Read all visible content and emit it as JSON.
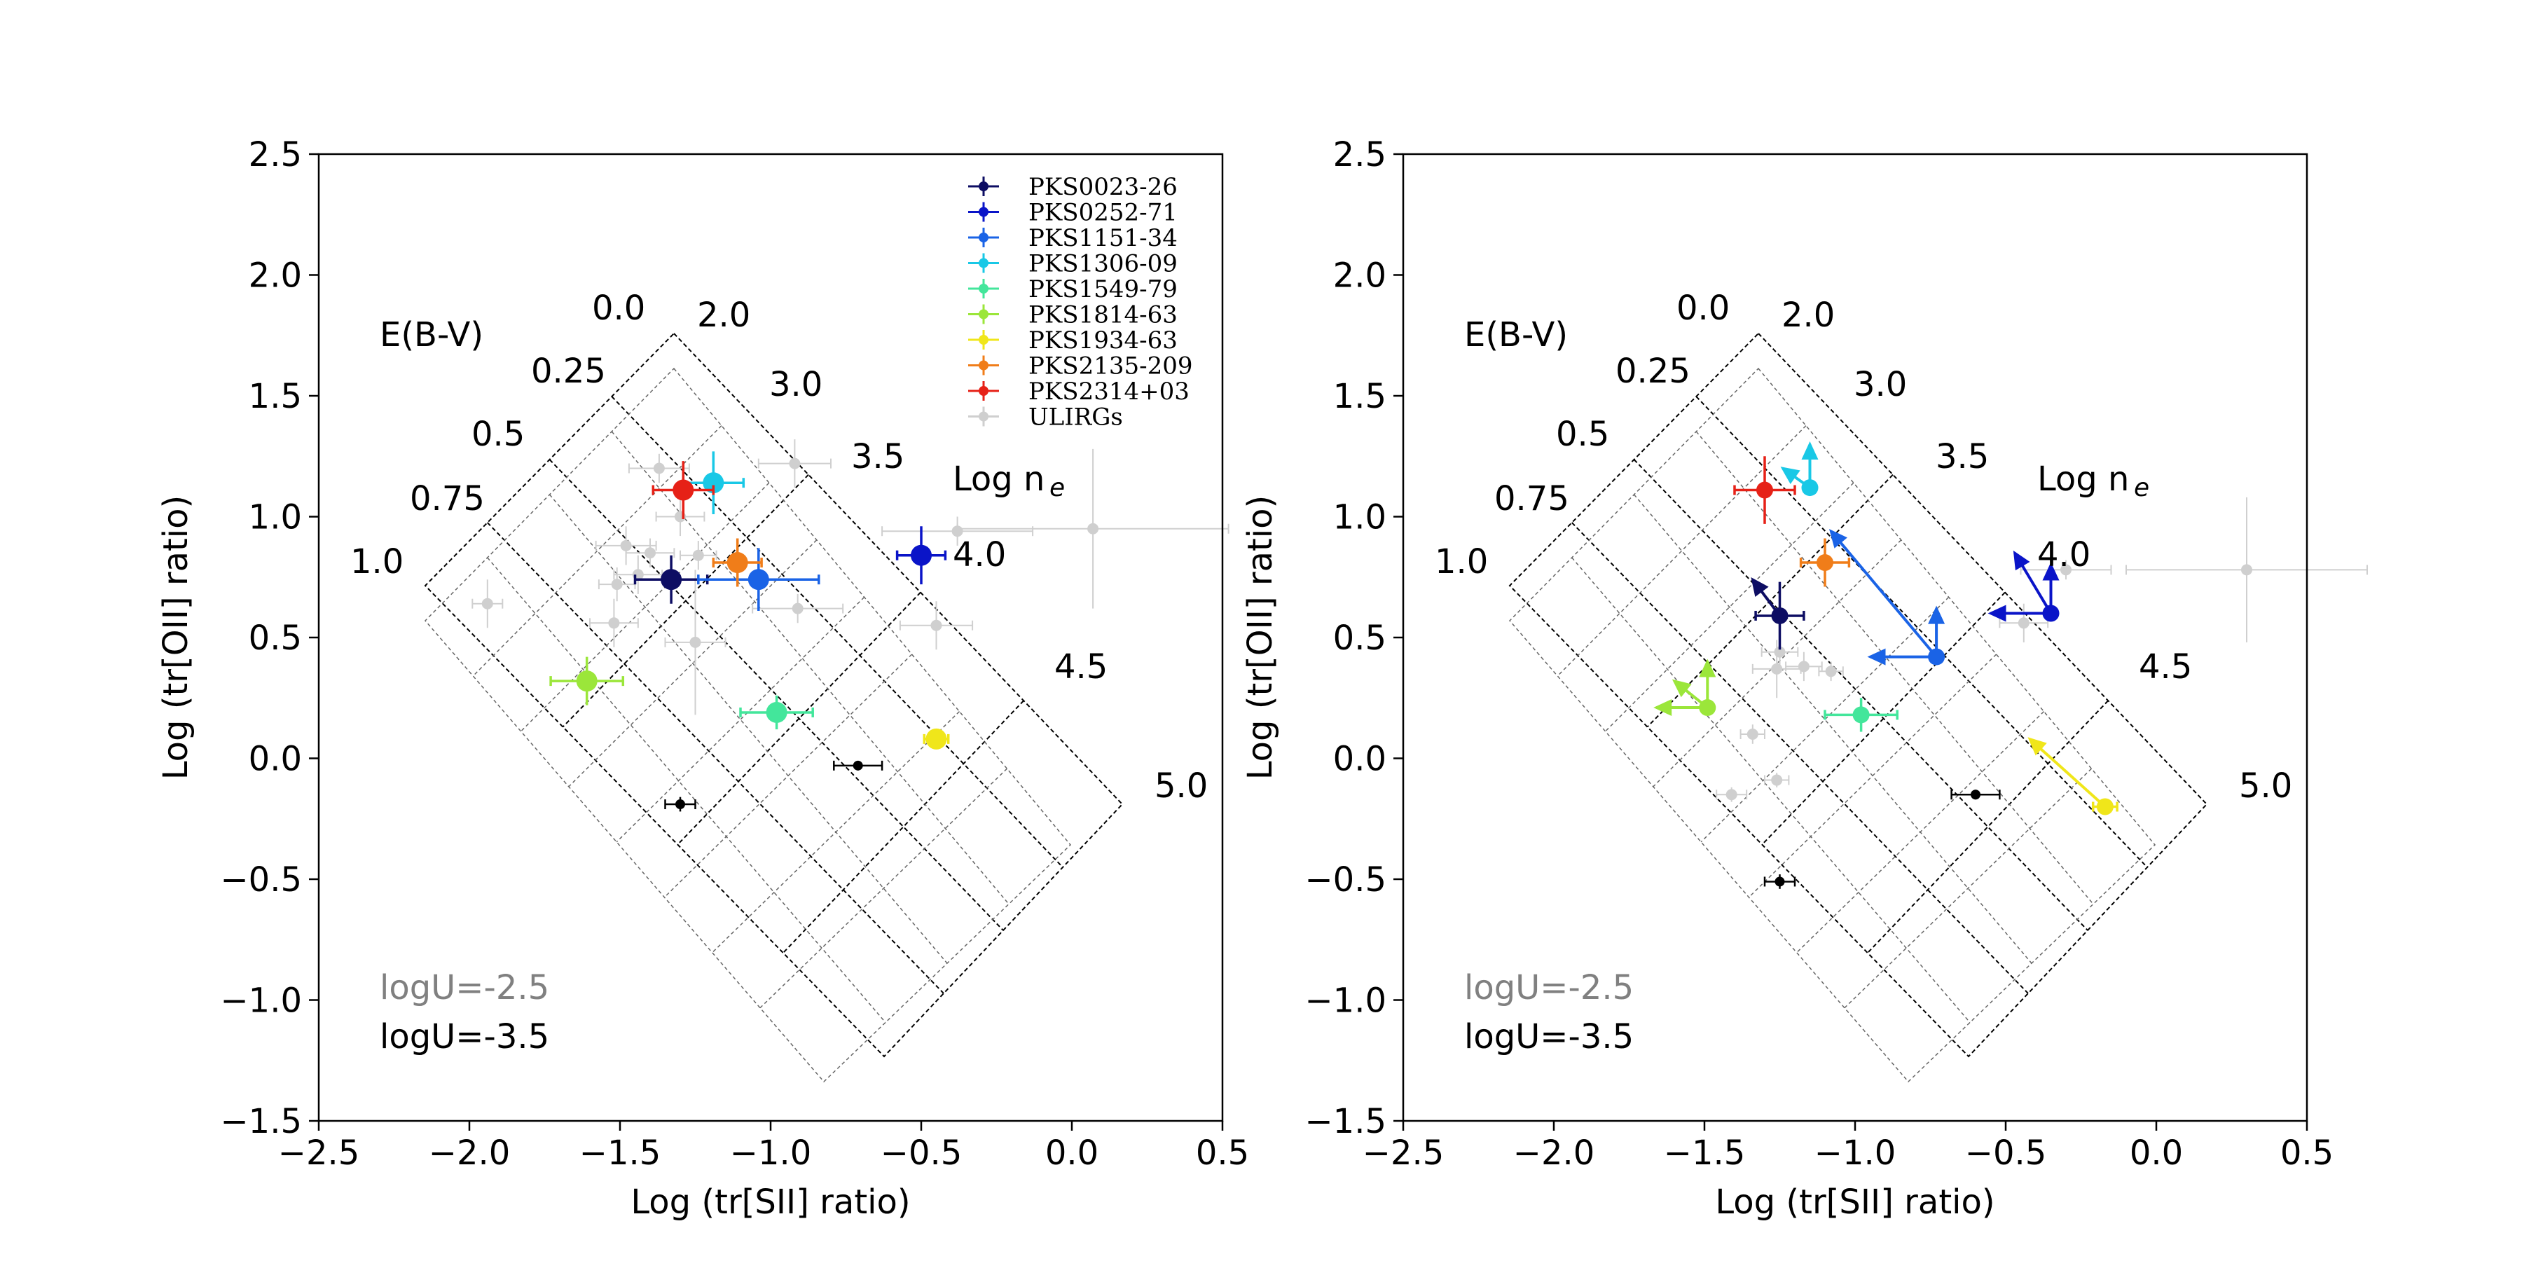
{
  "chart_data": [
    {
      "type": "scatter",
      "panel": "left",
      "xlabel": "Log (tr[SII] ratio)",
      "ylabel": "Log (tr[OII] ratio)",
      "xlim": [
        -2.5,
        0.5
      ],
      "ylim": [
        -1.5,
        2.5
      ],
      "xticks": [
        "−2.5",
        "−2.0",
        "−1.5",
        "−1.0",
        "−0.5",
        "0.0",
        "0.5"
      ],
      "yticks": [
        "−1.5",
        "−1.0",
        "−0.5",
        "0.0",
        "0.5",
        "1.0",
        "1.5",
        "2.0",
        "2.5"
      ],
      "grid_labels": {
        "ebv_title": "E(B-V)",
        "ebv": [
          "0.0",
          "0.25",
          "0.5",
          "0.75",
          "1.0"
        ],
        "ne_title": "Log n",
        "ne_sub": "e",
        "ne": [
          "2.0",
          "3.0",
          "3.5",
          "4.0",
          "4.5",
          "5.0"
        ]
      },
      "annotations": {
        "logu_high": "logU=-2.5",
        "logu_low": "logU=-3.5"
      },
      "legend": {
        "position": "top-right",
        "entries": [
          "PKS0023-26",
          "PKS0252-71",
          "PKS1151-34",
          "PKS1306-09",
          "PKS1549-79",
          "PKS1814-63",
          "PKS1934-63",
          "PKS2135-209",
          "PKS2314+03",
          "ULIRGs"
        ]
      },
      "series": [
        {
          "name": "PKS0023-26",
          "color": "#0d0d63",
          "x": -1.33,
          "y": 0.74,
          "xerr": 0.12,
          "yerr": 0.1
        },
        {
          "name": "PKS0252-71",
          "color": "#0a14c8",
          "x": -0.5,
          "y": 0.84,
          "xerr": 0.08,
          "yerr": 0.12
        },
        {
          "name": "PKS1151-34",
          "color": "#1a63e6",
          "x": -1.04,
          "y": 0.74,
          "xerr": 0.2,
          "yerr": 0.13
        },
        {
          "name": "PKS1306-09",
          "color": "#19c8e6",
          "x": -1.19,
          "y": 1.14,
          "xerr": 0.1,
          "yerr": 0.13
        },
        {
          "name": "PKS1549-79",
          "color": "#43e69b",
          "x": -0.98,
          "y": 0.19,
          "xerr": 0.12,
          "yerr": 0.07
        },
        {
          "name": "PKS1814-63",
          "color": "#9be63a",
          "x": -1.61,
          "y": 0.32,
          "xerr": 0.12,
          "yerr": 0.1
        },
        {
          "name": "PKS1934-63",
          "color": "#f0e61a",
          "x": -0.45,
          "y": 0.08,
          "xerr": 0.04,
          "yerr": 0.04
        },
        {
          "name": "PKS2135-209",
          "color": "#f07d19",
          "x": -1.11,
          "y": 0.81,
          "xerr": 0.08,
          "yerr": 0.1
        },
        {
          "name": "PKS2314+03",
          "color": "#e62117",
          "x": -1.29,
          "y": 1.11,
          "xerr": 0.1,
          "yerr": 0.12
        }
      ],
      "black_points": [
        {
          "x": -1.3,
          "y": -0.19,
          "xerr": 0.05,
          "yerr": 0.03
        },
        {
          "x": -0.71,
          "y": -0.03,
          "xerr": 0.08,
          "yerr": 0.02
        }
      ],
      "ulirgs": [
        {
          "x": -1.37,
          "y": 1.2,
          "xerr": 0.1,
          "yerr": 0.06
        },
        {
          "x": -1.3,
          "y": 1.0,
          "xerr": 0.08,
          "yerr": 0.08
        },
        {
          "x": -1.48,
          "y": 0.88,
          "xerr": 0.1,
          "yerr": 0.08
        },
        {
          "x": -1.4,
          "y": 0.85,
          "xerr": 0.08,
          "yerr": 0.06
        },
        {
          "x": -1.44,
          "y": 0.76,
          "xerr": 0.08,
          "yerr": 0.08
        },
        {
          "x": -1.51,
          "y": 0.72,
          "xerr": 0.06,
          "yerr": 0.07
        },
        {
          "x": -1.52,
          "y": 0.56,
          "xerr": 0.08,
          "yerr": 0.1
        },
        {
          "x": -1.25,
          "y": 0.48,
          "xerr": 0.1,
          "yerr": 0.3
        },
        {
          "x": -1.94,
          "y": 0.64,
          "xerr": 0.05,
          "yerr": 0.1
        },
        {
          "x": -0.91,
          "y": 0.62,
          "xerr": 0.15,
          "yerr": 0.06
        },
        {
          "x": -1.24,
          "y": 0.84,
          "xerr": 0.06,
          "yerr": 0.06
        },
        {
          "x": -0.92,
          "y": 1.22,
          "xerr": 0.12,
          "yerr": 0.1
        },
        {
          "x": -0.45,
          "y": 0.55,
          "xerr": 0.12,
          "yerr": 0.1
        },
        {
          "x": -0.38,
          "y": 0.94,
          "xerr": 0.25,
          "yerr": 0.06
        },
        {
          "x": 0.07,
          "y": 0.95,
          "xerr": 0.45,
          "yerr": 0.33
        }
      ]
    },
    {
      "type": "scatter",
      "panel": "right",
      "xlabel": "Log (tr[SII] ratio)",
      "ylabel": "Log (tr[OII] ratio)",
      "xlim": [
        -2.5,
        0.5
      ],
      "ylim": [
        -1.5,
        2.5
      ],
      "xticks": [
        "−2.5",
        "−2.0",
        "−1.5",
        "−1.0",
        "−0.5",
        "0.0",
        "0.5"
      ],
      "yticks": [
        "−1.5",
        "−1.0",
        "−0.5",
        "0.0",
        "0.5",
        "1.0",
        "1.5",
        "2.0",
        "2.5"
      ],
      "grid_labels": {
        "ebv_title": "E(B-V)",
        "ebv": [
          "0.0",
          "0.25",
          "0.5",
          "0.75",
          "1.0"
        ],
        "ne_title": "Log n",
        "ne_sub": "e",
        "ne": [
          "2.0",
          "3.0",
          "3.5",
          "4.0",
          "4.5",
          "5.0"
        ]
      },
      "annotations": {
        "logu_high": "logU=-2.5",
        "logu_low": "logU=-3.5"
      },
      "series": [
        {
          "name": "PKS0023-26",
          "color": "#0d0d63",
          "x": -1.25,
          "y": 0.59,
          "xerr": 0.08,
          "yerr": 0.14
        },
        {
          "name": "PKS0252-71",
          "color": "#0a14c8",
          "x": -0.35,
          "y": 0.6,
          "xerr": 0.0,
          "yerr": 0.0
        },
        {
          "name": "PKS1151-34",
          "color": "#1a63e6",
          "x": -0.73,
          "y": 0.42,
          "xerr": 0.0,
          "yerr": 0.0
        },
        {
          "name": "PKS1306-09",
          "color": "#19c8e6",
          "x": -1.15,
          "y": 1.12,
          "xerr": 0.0,
          "yerr": 0.0
        },
        {
          "name": "PKS1549-79",
          "color": "#43e69b",
          "x": -0.98,
          "y": 0.18,
          "xerr": 0.12,
          "yerr": 0.07
        },
        {
          "name": "PKS1814-63",
          "color": "#9be63a",
          "x": -1.49,
          "y": 0.21,
          "xerr": 0.0,
          "yerr": 0.0
        },
        {
          "name": "PKS1934-63",
          "color": "#f0e61a",
          "x": -0.17,
          "y": -0.2,
          "xerr": 0.04,
          "yerr": 0.03
        },
        {
          "name": "PKS2135-209",
          "color": "#f07d19",
          "x": -1.1,
          "y": 0.81,
          "xerr": 0.08,
          "yerr": 0.1
        },
        {
          "name": "PKS2314+03",
          "color": "#e62117",
          "x": -1.3,
          "y": 1.11,
          "xerr": 0.1,
          "yerr": 0.14
        }
      ],
      "arrows": [
        {
          "color": "#0a14c8",
          "x0": -0.35,
          "y0": 0.6,
          "x1": -0.35,
          "y1": 0.8
        },
        {
          "color": "#0a14c8",
          "x0": -0.35,
          "y0": 0.6,
          "x1": -0.55,
          "y1": 0.6
        },
        {
          "color": "#0a14c8",
          "x0": -0.35,
          "y0": 0.6,
          "x1": -0.47,
          "y1": 0.85
        },
        {
          "color": "#1a63e6",
          "x0": -0.73,
          "y0": 0.42,
          "x1": -0.73,
          "y1": 0.62
        },
        {
          "color": "#1a63e6",
          "x0": -0.73,
          "y0": 0.42,
          "x1": -0.95,
          "y1": 0.42
        },
        {
          "color": "#1a63e6",
          "x0": -0.73,
          "y0": 0.42,
          "x1": -1.08,
          "y1": 0.94
        },
        {
          "color": "#19c8e6",
          "x0": -1.15,
          "y0": 1.12,
          "x1": -1.15,
          "y1": 1.3
        },
        {
          "color": "#19c8e6",
          "x0": -1.15,
          "y0": 1.12,
          "x1": -1.24,
          "y1": 1.2
        },
        {
          "color": "#9be63a",
          "x0": -1.49,
          "y0": 0.21,
          "x1": -1.49,
          "y1": 0.4
        },
        {
          "color": "#9be63a",
          "x0": -1.49,
          "y0": 0.21,
          "x1": -1.66,
          "y1": 0.21
        },
        {
          "color": "#9be63a",
          "x0": -1.49,
          "y0": 0.21,
          "x1": -1.6,
          "y1": 0.32
        },
        {
          "color": "#f0e61a",
          "x0": -0.17,
          "y0": -0.2,
          "x1": -0.42,
          "y1": 0.08
        },
        {
          "color": "#0d0d63",
          "x0": -1.25,
          "y0": 0.59,
          "x1": -1.34,
          "y1": 0.74
        }
      ],
      "black_points": [
        {
          "x": -1.25,
          "y": -0.51,
          "xerr": 0.05,
          "yerr": 0.03
        },
        {
          "x": -0.6,
          "y": -0.15,
          "xerr": 0.08,
          "yerr": 0.02
        }
      ],
      "ulirgs": [
        {
          "x": -1.25,
          "y": 0.44,
          "xerr": 0.06,
          "yerr": 0.06
        },
        {
          "x": -1.17,
          "y": 0.38,
          "xerr": 0.06,
          "yerr": 0.06
        },
        {
          "x": -1.26,
          "y": 0.37,
          "xerr": 0.08,
          "yerr": 0.12
        },
        {
          "x": -1.34,
          "y": 0.1,
          "xerr": 0.04,
          "yerr": 0.04
        },
        {
          "x": -1.26,
          "y": -0.09,
          "xerr": 0.04,
          "yerr": 0.03
        },
        {
          "x": -1.41,
          "y": -0.15,
          "xerr": 0.05,
          "yerr": 0.03
        },
        {
          "x": -1.08,
          "y": 0.36,
          "xerr": 0.04,
          "yerr": 0.04
        },
        {
          "x": -0.44,
          "y": 0.56,
          "xerr": 0.08,
          "yerr": 0.08
        },
        {
          "x": 0.3,
          "y": 0.78,
          "xerr": 0.4,
          "yerr": 0.3
        },
        {
          "x": -0.3,
          "y": 0.78,
          "xerr": 0.15,
          "yerr": 0.04
        }
      ]
    }
  ]
}
